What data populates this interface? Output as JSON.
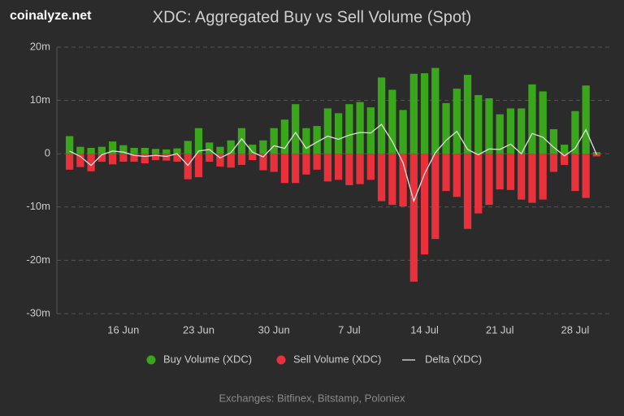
{
  "site": "coinalyze.net",
  "chart_data": {
    "type": "bar",
    "title": "XDC: Aggregated Buy vs Sell Volume (Spot)",
    "categories": [
      null,
      null,
      null,
      null,
      null,
      "16 Jun",
      null,
      null,
      null,
      null,
      null,
      null,
      "23 Jun",
      null,
      null,
      null,
      null,
      null,
      null,
      "30 Jun",
      null,
      null,
      null,
      null,
      null,
      null,
      "7 Jul",
      null,
      null,
      null,
      null,
      null,
      null,
      "14 Jul",
      null,
      null,
      null,
      null,
      null,
      null,
      "21 Jul",
      null,
      null,
      null,
      null,
      null,
      null,
      "28 Jul",
      null,
      null
    ],
    "series": [
      {
        "name": "Buy Volume (XDC)",
        "type": "bar",
        "color": "#3aa61c",
        "values": [
          3.3,
          1.3,
          1.1,
          1.3,
          2.3,
          1.6,
          1.1,
          1.1,
          0.9,
          0.8,
          1.0,
          2.4,
          4.8,
          2.1,
          1.3,
          2.5,
          4.8,
          1.7,
          2.5,
          4.8,
          6.4,
          9.3,
          4.8,
          5.2,
          8.5,
          7.6,
          9.3,
          9.7,
          8.7,
          14.3,
          12.0,
          8.2,
          15.0,
          15.1,
          16.1,
          9.5,
          12.2,
          14.8,
          11.0,
          10.4,
          7.4,
          8.5,
          8.5,
          13.0,
          11.7,
          4.6,
          1.7,
          8.0,
          12.8,
          0.3
        ]
      },
      {
        "name": "Sell Volume (XDC)",
        "type": "bar",
        "color": "#e8313a",
        "values": [
          -3.0,
          -2.5,
          -3.3,
          -1.5,
          -2.0,
          -1.5,
          -1.5,
          -1.8,
          -1.2,
          -1.3,
          -1.5,
          -4.8,
          -4.4,
          -1.5,
          -2.4,
          -2.6,
          -2.1,
          -1.2,
          -3.1,
          -3.4,
          -5.5,
          -5.5,
          -3.9,
          -3.0,
          -5.2,
          -4.9,
          -5.9,
          -5.7,
          -4.9,
          -8.9,
          -9.6,
          -9.9,
          -24.0,
          -18.9,
          -16.0,
          -7.0,
          -8.1,
          -14.1,
          -11.2,
          -9.6,
          -6.7,
          -6.8,
          -8.6,
          -9.2,
          -8.6,
          -3.4,
          -2.1,
          -7.0,
          -8.3,
          -0.5
        ]
      },
      {
        "name": "Delta (XDC)",
        "type": "line",
        "color": "#e0e0e0",
        "values": [
          0.5,
          -0.5,
          -2.2,
          -0.2,
          0.5,
          0.3,
          -0.3,
          -0.5,
          -0.3,
          -0.5,
          0.0,
          -2.2,
          0.5,
          0.8,
          -0.8,
          0.2,
          2.8,
          0.3,
          -0.6,
          1.5,
          1.0,
          4.0,
          1.0,
          2.2,
          3.3,
          2.7,
          3.5,
          4.0,
          3.9,
          5.5,
          2.3,
          -1.7,
          -8.9,
          -3.8,
          0.2,
          2.5,
          4.2,
          0.8,
          -0.2,
          0.9,
          0.8,
          1.8,
          0.0,
          3.8,
          3.1,
          1.2,
          -0.4,
          1.0,
          4.5,
          -0.2
        ]
      }
    ],
    "ylim": [
      -30,
      20
    ],
    "yticks": [
      {
        "value": 20,
        "label": "20m"
      },
      {
        "value": 10,
        "label": "10m"
      },
      0,
      {
        "value": -10,
        "label": "-10m"
      },
      {
        "value": -20,
        "label": "-20m"
      },
      {
        "value": -30,
        "label": "-30m"
      }
    ],
    "grid": true,
    "footer": "Exchanges: Bitfinex, Bitstamp, Poloniex"
  }
}
